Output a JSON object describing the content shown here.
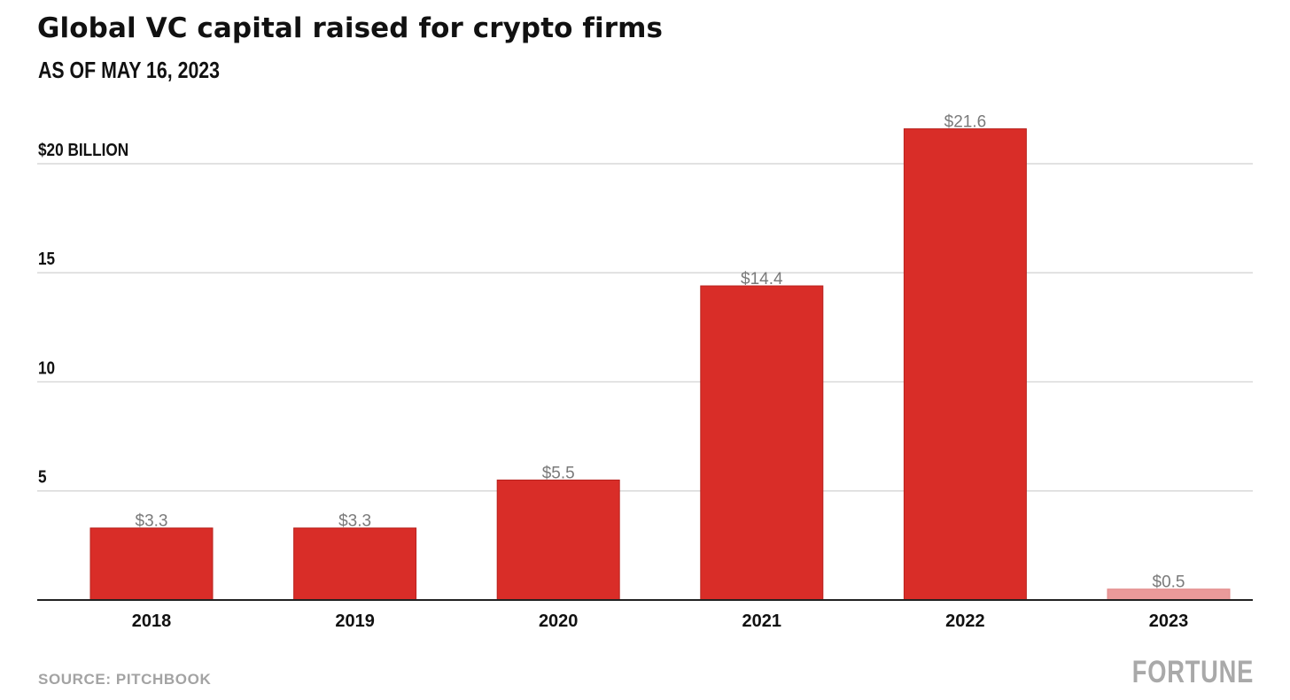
{
  "header": {
    "title": "Global VC capital raised for crypto firms",
    "subtitle": "AS OF MAY 16, 2023"
  },
  "footer": {
    "source": "SOURCE: PITCHBOOK",
    "brand": "FORTUNE"
  },
  "colors": {
    "bar": "#d92d28",
    "bar_partial": "#ea9a9a",
    "value_label": "#7a7a7a",
    "grid": "#d9d9d9",
    "axis": "#222222"
  },
  "chart_data": {
    "type": "bar",
    "title": "Global VC capital raised for crypto firms",
    "subtitle": "AS OF MAY 16, 2023",
    "categories": [
      "2018",
      "2019",
      "2020",
      "2021",
      "2022",
      "2023"
    ],
    "values": [
      3.3,
      3.3,
      5.5,
      14.4,
      21.6,
      0.5
    ],
    "value_labels": [
      "$3.3",
      "$3.3",
      "$5.5",
      "$14.4",
      "$21.6",
      "$0.5"
    ],
    "partial": [
      false,
      false,
      false,
      false,
      false,
      true
    ],
    "ylim": [
      0,
      22
    ],
    "yticks": [
      5,
      10,
      15,
      20
    ],
    "ytick_labels": [
      "5",
      "10",
      "15",
      "$20 BILLION"
    ],
    "grid": true,
    "legend": "none"
  }
}
